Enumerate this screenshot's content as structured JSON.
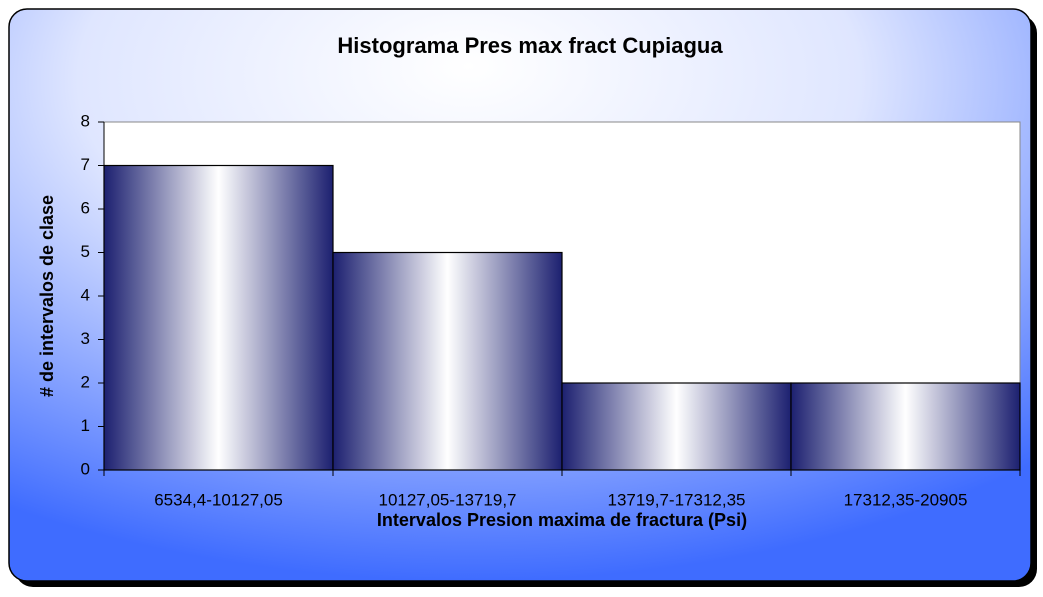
{
  "chart_data": {
    "type": "bar",
    "title": "Histograma Pres max  fract Cupiagua",
    "x_label": "Intervalos Presion maxima de fractura (Psi)",
    "y_label": "# de intervalos de clase",
    "categories": [
      "6534,4-10127,05",
      "10127,05-13719,7",
      "13719,7-17312,35",
      "17312,35-20905"
    ],
    "values": [
      7,
      5,
      2,
      2
    ],
    "color": "#1c2070",
    "ylim": [
      0,
      8
    ],
    "yticks": [
      0,
      1,
      2,
      3,
      4,
      5,
      6,
      7,
      8
    ],
    "grid": false
  }
}
